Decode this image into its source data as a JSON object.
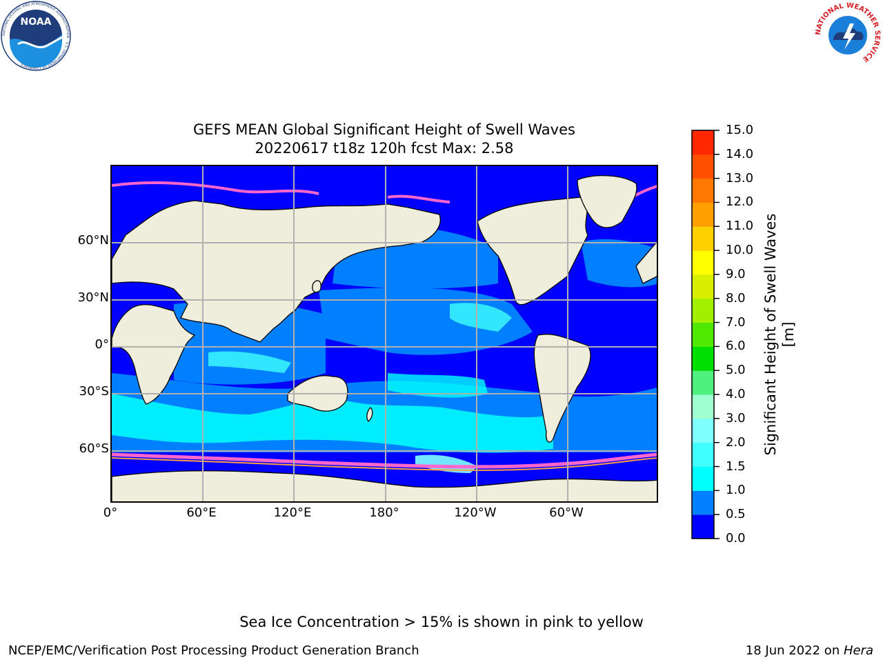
{
  "header": {
    "title_line1": "GEFS MEAN Global Significant Height of Swell Waves",
    "title_line2": "20220617 t18z 120h fcst   Max: 2.58"
  },
  "map": {
    "lat_labels": [
      "60°N",
      "30°N",
      "0°",
      "30°S",
      "60°S"
    ],
    "lon_labels": [
      "0°",
      "60°E",
      "120°E",
      "180°",
      "120°W",
      "60°W"
    ],
    "colors": {
      "land": "#efeddc",
      "ice_mask": "#ffffff",
      "gridline": "#b0b0b0"
    }
  },
  "colorbar": {
    "label": "Significant Height of Swell Waves [m]",
    "ticks": [
      "0.0",
      "0.5",
      "1.0",
      "1.5",
      "2.0",
      "3.0",
      "4.0",
      "5.0",
      "6.0",
      "7.0",
      "8.0",
      "9.0",
      "10.0",
      "11.0",
      "12.0",
      "13.0",
      "14.0",
      "15.0"
    ],
    "colors": [
      "#0000ff",
      "#0080ff",
      "#00ffff",
      "#40ffff",
      "#80ffff",
      "#a0ffd0",
      "#50f080",
      "#00e000",
      "#50e800",
      "#a0f000",
      "#d8f000",
      "#ffff00",
      "#ffd000",
      "#ffa000",
      "#ff7800",
      "#ff5000",
      "#ff2800",
      "#ff0000"
    ]
  },
  "logos": {
    "noaa": {
      "text": "NOAA",
      "ring_text": "NATIONAL OCEANIC AND ATMOSPHERIC ADMINISTRATION · U.S. DEPARTMENT OF COMMERCE"
    },
    "nws": {
      "ring_text": "NATIONAL WEATHER SERVICE"
    }
  },
  "footer": {
    "note": "Sea Ice Concentration > 15% is shown in pink to yellow",
    "left": "NCEP/EMC/Verification Post Processing Product Generation Branch",
    "right_date": "18 Jun 2022 on ",
    "right_host": "Hera"
  }
}
